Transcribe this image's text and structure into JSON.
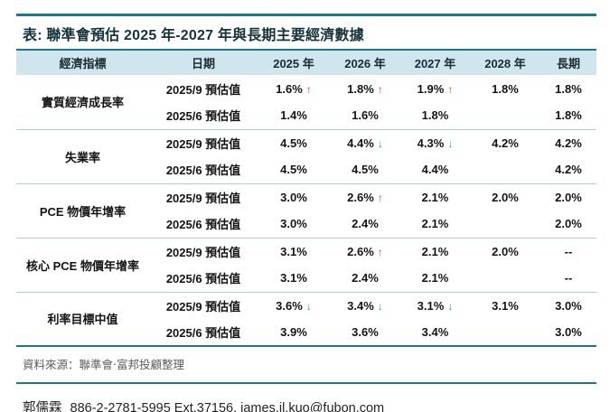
{
  "title": "表: 聯準會預估 2025 年-2027 年與長期主要經濟數據",
  "table": {
    "headers": [
      "經濟指標",
      "日期",
      "2025 年",
      "2026 年",
      "2027 年",
      "2028 年",
      "長期"
    ],
    "groups": [
      {
        "indicator": "實質經濟成長率",
        "rows": [
          {
            "date": "2025/9 預估值",
            "values": [
              {
                "v": "1.6%",
                "arrow": "up"
              },
              {
                "v": "1.8%",
                "arrow": "up"
              },
              {
                "v": "1.9%",
                "arrow": "up"
              },
              {
                "v": "1.8%"
              },
              {
                "v": "1.8%"
              }
            ]
          },
          {
            "date": "2025/6 預估值",
            "values": [
              {
                "v": "1.4%"
              },
              {
                "v": "1.6%"
              },
              {
                "v": "1.8%"
              },
              {
                "v": ""
              },
              {
                "v": "1.8%"
              }
            ]
          }
        ]
      },
      {
        "indicator": "失業率",
        "rows": [
          {
            "date": "2025/9 預估值",
            "values": [
              {
                "v": "4.5%"
              },
              {
                "v": "4.4%",
                "arrow": "down"
              },
              {
                "v": "4.3%",
                "arrow": "down"
              },
              {
                "v": "4.2%"
              },
              {
                "v": "4.2%"
              }
            ]
          },
          {
            "date": "2025/6 預估值",
            "values": [
              {
                "v": "4.5%"
              },
              {
                "v": "4.5%"
              },
              {
                "v": "4.4%"
              },
              {
                "v": ""
              },
              {
                "v": "4.2%"
              }
            ]
          }
        ]
      },
      {
        "indicator": "PCE 物價年增率",
        "rows": [
          {
            "date": "2025/9 預估值",
            "values": [
              {
                "v": "3.0%"
              },
              {
                "v": "2.6%",
                "arrow": "up"
              },
              {
                "v": "2.1%"
              },
              {
                "v": "2.0%"
              },
              {
                "v": "2.0%"
              }
            ]
          },
          {
            "date": "2025/6 預估值",
            "values": [
              {
                "v": "3.0%"
              },
              {
                "v": "2.4%"
              },
              {
                "v": "2.1%"
              },
              {
                "v": ""
              },
              {
                "v": "2.0%"
              }
            ]
          }
        ]
      },
      {
        "indicator": "核心 PCE 物價年增率",
        "rows": [
          {
            "date": "2025/9 預估值",
            "values": [
              {
                "v": "3.1%"
              },
              {
                "v": "2.6%",
                "arrow": "up"
              },
              {
                "v": "2.1%"
              },
              {
                "v": "2.0%"
              },
              {
                "v": "--"
              }
            ]
          },
          {
            "date": "2025/6 預估值",
            "values": [
              {
                "v": "3.1%"
              },
              {
                "v": "2.4%"
              },
              {
                "v": "2.1%"
              },
              {
                "v": ""
              },
              {
                "v": "--"
              }
            ]
          }
        ]
      },
      {
        "indicator": "利率目標中值",
        "rows": [
          {
            "date": "2025/9 預估值",
            "values": [
              {
                "v": "3.6%",
                "arrow": "down"
              },
              {
                "v": "3.4%",
                "arrow": "down"
              },
              {
                "v": "3.1%",
                "arrow": "down"
              },
              {
                "v": "3.1%"
              },
              {
                "v": "3.0%"
              }
            ]
          },
          {
            "date": "2025/6 預估值",
            "values": [
              {
                "v": "3.9%"
              },
              {
                "v": "3.6%"
              },
              {
                "v": "3.4%"
              },
              {
                "v": ""
              },
              {
                "v": "3.0%"
              }
            ]
          }
        ]
      }
    ]
  },
  "source": "資料來源：聯準會‧富邦投顧整理",
  "contact": {
    "name": "郭儒霖",
    "phone_email": "886-2-2781-5995 Ext.37156, james.jl.kuo@fubon.com"
  },
  "colors": {
    "accent_teal": "#1a7888",
    "header_bg": "#cfe6ef",
    "separator": "#a9cedd",
    "arrow_up": "#e03c42",
    "arrow_down": "#2f9e5f"
  },
  "icons": {
    "up_arrow": "↑",
    "down_arrow": "↓"
  }
}
